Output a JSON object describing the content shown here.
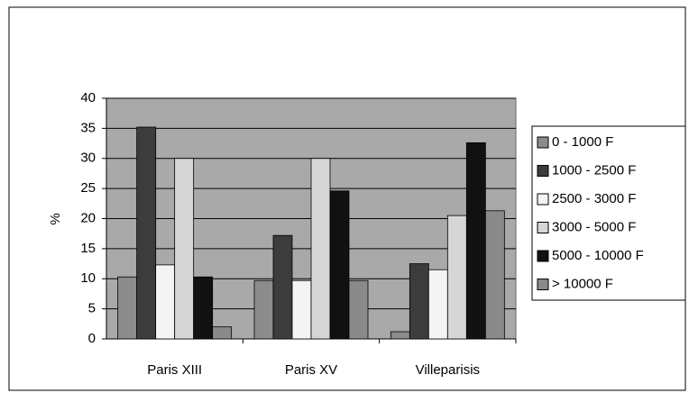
{
  "chart_data": {
    "type": "bar",
    "y_label": "%",
    "categories": [
      "Paris XIII",
      "Paris XV",
      "Villeparisis"
    ],
    "series": [
      {
        "name": "0 - 1000 F",
        "color": "#8c8c8c",
        "values": [
          10.3,
          9.7,
          1.2
        ]
      },
      {
        "name": "1000 - 2500 F",
        "color": "#3c3c3c",
        "values": [
          35.2,
          17.2,
          12.5
        ]
      },
      {
        "name": "2500 - 3000 F",
        "color": "#f4f4f4",
        "values": [
          12.3,
          9.7,
          11.5
        ]
      },
      {
        "name": "3000 - 5000 F",
        "color": "#d6d6d6",
        "values": [
          30,
          30,
          20.5
        ]
      },
      {
        "name": "5000 - 10000 F",
        "color": "#111111",
        "values": [
          10.3,
          24.6,
          32.6
        ]
      },
      {
        "name": "> 10000 F",
        "color": "#8a8a8a",
        "values": [
          2,
          9.7,
          21.3
        ]
      }
    ],
    "ylim": [
      0,
      40
    ],
    "yticks": [
      0,
      5,
      10,
      15,
      20,
      25,
      30,
      35,
      40
    ],
    "grid": true,
    "legend": "right"
  }
}
